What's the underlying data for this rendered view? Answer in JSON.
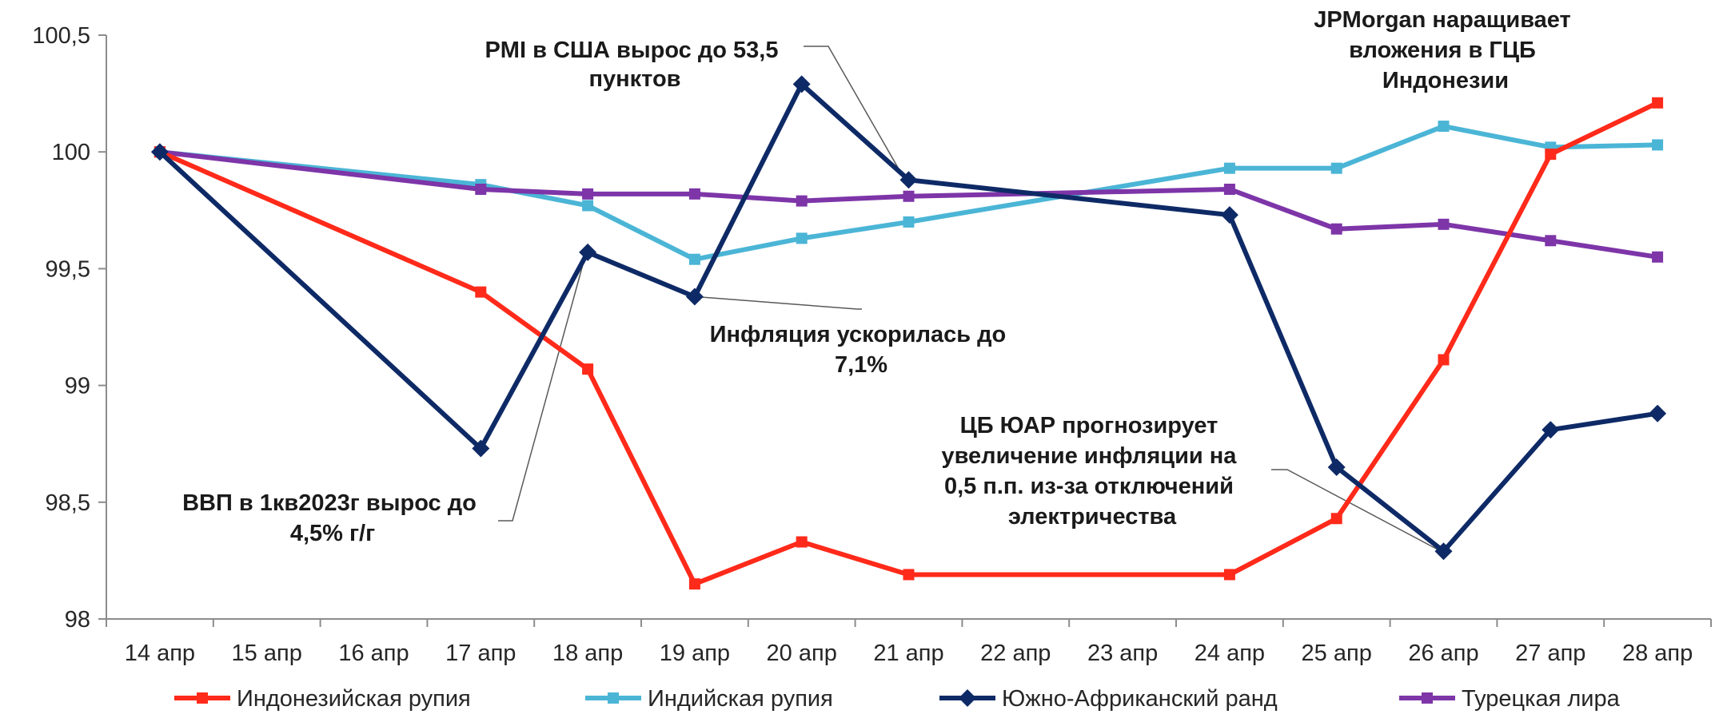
{
  "chart_data": {
    "type": "line",
    "title": "",
    "xlabel": "",
    "ylabel": "",
    "categories": [
      "14 апр",
      "15 апр",
      "16 апр",
      "17 апр",
      "18 апр",
      "19 апр",
      "20 апр",
      "21 апр",
      "22 апр",
      "23 апр",
      "24 апр",
      "25 апр",
      "26 апр",
      "27 апр",
      "28 апр"
    ],
    "ylim": [
      98,
      100.5
    ],
    "yticks": [
      98,
      98.5,
      99,
      99.5,
      100,
      100.5
    ],
    "ytick_labels": [
      "98",
      "98,5",
      "99",
      "99,5",
      "100",
      "100,5"
    ],
    "grid": false,
    "legend_position": "bottom",
    "series": [
      {
        "name": "Индонезийская рупия",
        "color": "#ff2a1a",
        "marker": "square",
        "points": [
          [
            0,
            100
          ],
          [
            3,
            99.4
          ],
          [
            4,
            99.07
          ],
          [
            5,
            98.15
          ],
          [
            6,
            98.33
          ],
          [
            7,
            98.19
          ],
          [
            10,
            98.19
          ],
          [
            11,
            98.43
          ],
          [
            12,
            99.11
          ],
          [
            13,
            99.99
          ],
          [
            14,
            100.21
          ]
        ]
      },
      {
        "name": "Индийская рупия",
        "color": "#4bb5d6",
        "marker": "square",
        "points": [
          [
            0,
            100
          ],
          [
            3,
            99.86
          ],
          [
            4,
            99.77
          ],
          [
            5,
            99.54
          ],
          [
            6,
            99.63
          ],
          [
            7,
            99.7
          ],
          [
            10,
            99.93
          ],
          [
            11,
            99.93
          ],
          [
            12,
            100.11
          ],
          [
            13,
            100.02
          ],
          [
            14,
            100.03
          ]
        ]
      },
      {
        "name": "Южно-Африканский ранд",
        "color": "#0e2a66",
        "marker": "diamond",
        "points": [
          [
            0,
            100
          ],
          [
            3,
            98.73
          ],
          [
            4,
            99.57
          ],
          [
            5,
            99.38
          ],
          [
            6,
            100.29
          ],
          [
            7,
            99.88
          ],
          [
            10,
            99.73
          ],
          [
            11,
            98.65
          ],
          [
            12,
            98.29
          ],
          [
            13,
            98.81
          ],
          [
            14,
            98.88
          ]
        ]
      },
      {
        "name": "Турецкая лира",
        "color": "#7d35a8",
        "marker": "square",
        "points": [
          [
            0,
            100
          ],
          [
            3,
            99.84
          ],
          [
            4,
            99.82
          ],
          [
            5,
            99.82
          ],
          [
            6,
            99.79
          ],
          [
            7,
            99.81
          ],
          [
            10,
            99.84
          ],
          [
            11,
            99.67
          ],
          [
            12,
            99.69
          ],
          [
            13,
            99.62
          ],
          [
            14,
            99.55
          ]
        ]
      }
    ],
    "annotations": [
      {
        "lines": [
          "PMI в США вырос до 53,5",
          "пунктов"
        ],
        "x": 7,
        "y": 99.88
      },
      {
        "lines": [
          "JPMorgan наращивает",
          "вложения в ГЦБ",
          "Индонезии"
        ]
      },
      {
        "lines": [
          "Инфляция ускорилась до",
          "7,1%"
        ],
        "x": 5,
        "y": 99.38
      },
      {
        "lines": [
          "ЦБ ЮАР прогнозирует",
          "увеличение инфляции на",
          "0,5 п.п. из-за отключений",
          "электричества"
        ],
        "x": 12,
        "y": 98.29
      },
      {
        "lines": [
          "ВВП в 1кв2023г вырос до",
          "4,5% г/г"
        ],
        "x": 4,
        "y": 99.57
      }
    ]
  }
}
